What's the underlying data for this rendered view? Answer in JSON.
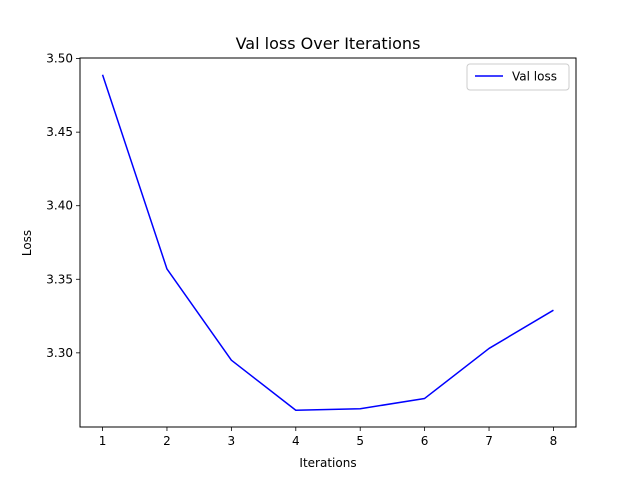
{
  "chart_data": {
    "type": "line",
    "title": "Val loss Over Iterations",
    "xlabel": "Iterations",
    "ylabel": "Loss",
    "x": [
      1,
      2,
      3,
      4,
      5,
      6,
      7,
      8
    ],
    "series": [
      {
        "name": "Val loss",
        "color": "#0000ff",
        "values": [
          3.489,
          3.357,
          3.295,
          3.261,
          3.262,
          3.269,
          3.303,
          3.329
        ]
      }
    ],
    "xlim": [
      0.65,
      8.35
    ],
    "ylim": [
      3.2496,
      3.5004
    ],
    "xticks": [
      1,
      2,
      3,
      4,
      5,
      6,
      7,
      8
    ],
    "xtick_labels": [
      "1",
      "2",
      "3",
      "4",
      "5",
      "6",
      "7",
      "8"
    ],
    "yticks": [
      3.3,
      3.35,
      3.4,
      3.45,
      3.5
    ],
    "ytick_labels": [
      "3.30",
      "3.35",
      "3.40",
      "3.45",
      "3.50"
    ],
    "grid": false,
    "legend_position": "upper right",
    "axis_color": "#000000"
  }
}
